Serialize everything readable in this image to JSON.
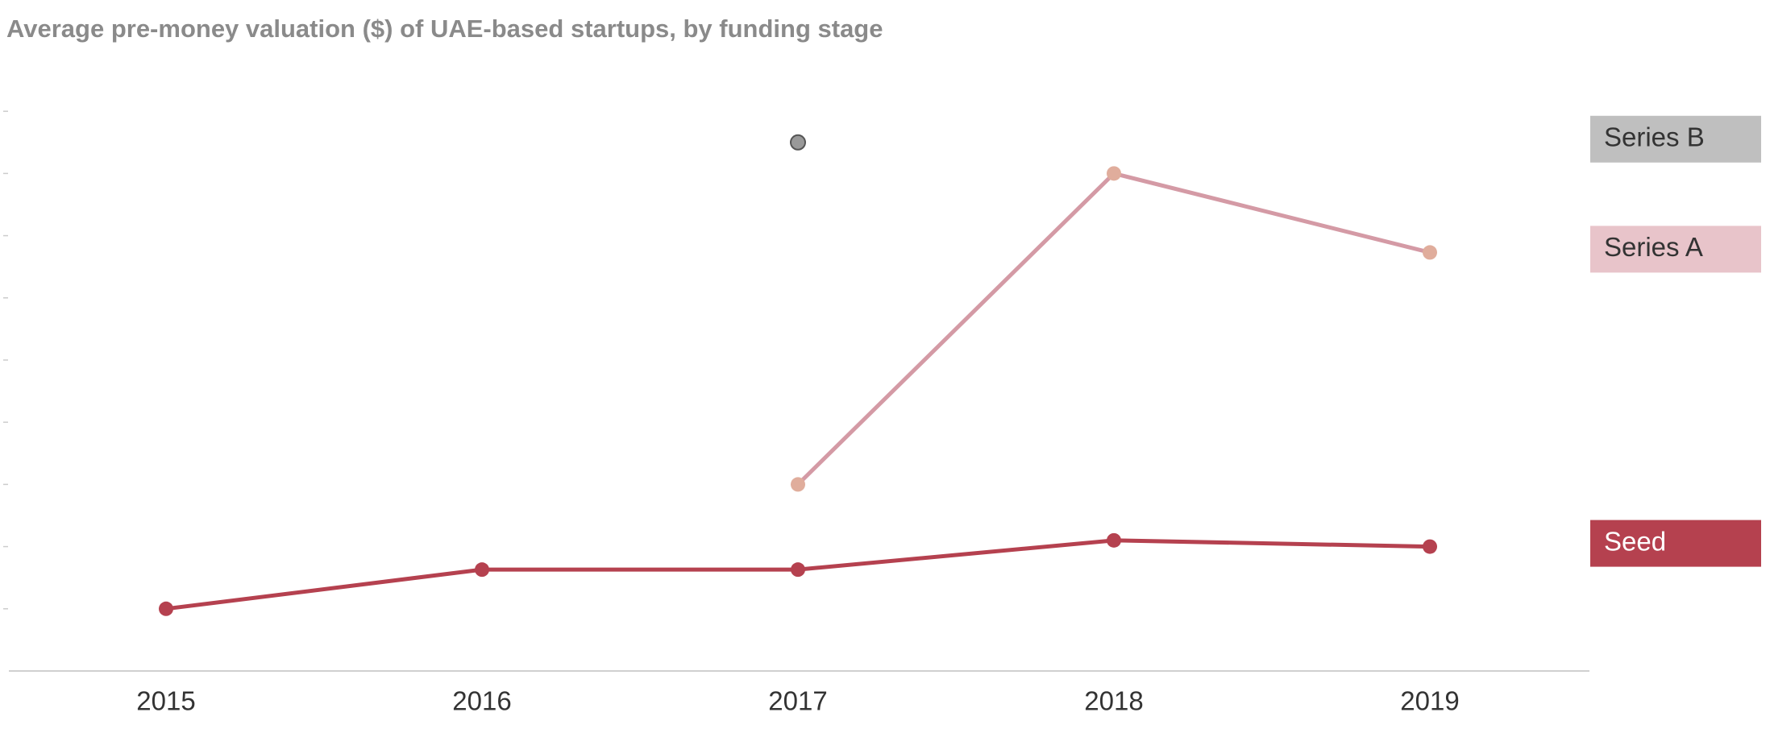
{
  "chart_data": {
    "type": "line",
    "title": "Average pre-money valuation ($) of UAE-based startups, by funding stage",
    "categories": [
      "2015",
      "2016",
      "2017",
      "2018",
      "2019"
    ],
    "series": [
      {
        "name": "Seed",
        "color": "#b5414f",
        "marker_color": "#b5414f",
        "legend_text_color": "#ffffff",
        "values": [
          1.0,
          1.63,
          1.63,
          2.1,
          2.0
        ]
      },
      {
        "name": "Series A",
        "color": "#d49aa5",
        "marker_color": "#e0ad9c",
        "legend_color": "#e8c4ca",
        "legend_text_color": "#333333",
        "values": [
          null,
          null,
          3.0,
          8.0,
          6.73
        ]
      },
      {
        "name": "Series B",
        "color": "#999999",
        "marker_color": "#999999",
        "legend_color": "#bfbfbf",
        "legend_text_color": "#333333",
        "values": [
          null,
          null,
          8.5,
          null,
          null
        ]
      }
    ],
    "ylim": [
      0,
      9.3
    ],
    "yticks": [
      1,
      2,
      3,
      4,
      5,
      6,
      7,
      8,
      9
    ]
  }
}
